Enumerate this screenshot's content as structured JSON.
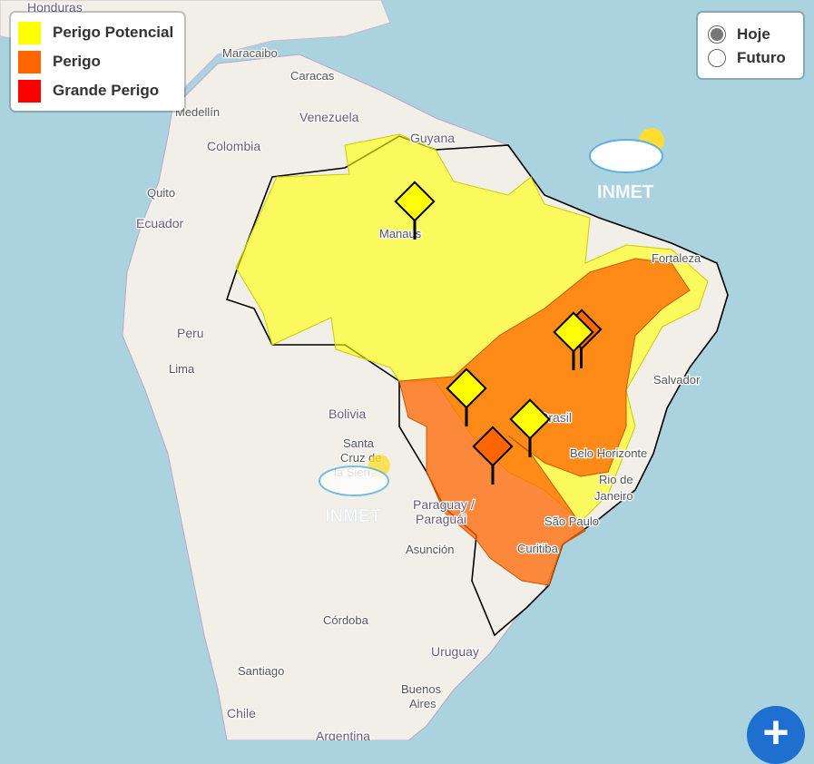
{
  "legend": {
    "items": [
      {
        "label": "Perigo Potencial",
        "color": "#ffff00"
      },
      {
        "label": "Perigo",
        "color": "#ff6600"
      },
      {
        "label": "Grande Perigo",
        "color": "#ff0000"
      }
    ]
  },
  "period_selector": {
    "options": [
      {
        "label": "Hoje",
        "selected": true
      },
      {
        "label": "Futuro",
        "selected": false
      }
    ]
  },
  "logo": "INMET",
  "map_labels": {
    "countries": [
      "Honduras",
      "Venezuela",
      "Colombia",
      "Ecuador",
      "Guyana",
      "Peru",
      "Bolivia",
      "Brasil",
      "Paraguay / Paraguái",
      "Uruguay",
      "Chile",
      "Argentina"
    ],
    "cities": [
      "Maracaibo",
      "Caracas",
      "Medellín",
      "Quito",
      "Manaus",
      "Fortaleza",
      "Salvador",
      "Lima",
      "Santa Cruz de la Sierra",
      "Belo Horizonte",
      "Rio de Janeiro",
      "São Paulo",
      "Curitiba",
      "Asunción",
      "Córdoba",
      "Santiago",
      "Buenos Aires"
    ]
  },
  "zoom_button": "+",
  "colors": {
    "ocean": "#aad3df",
    "land": "#f2efe9"
  }
}
